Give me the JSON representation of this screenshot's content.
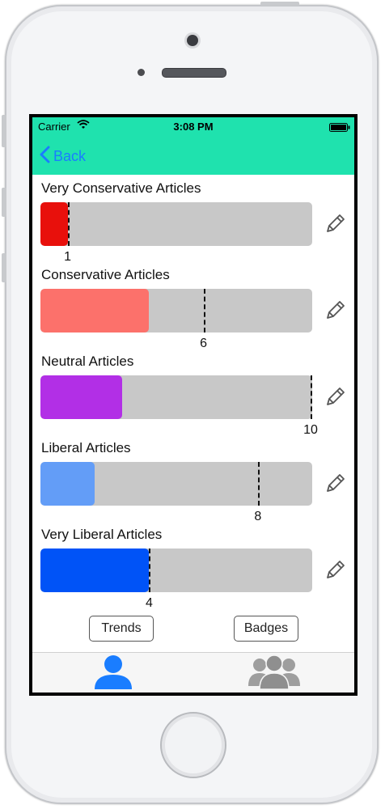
{
  "status_bar": {
    "carrier": "Carrier",
    "time": "3:08 PM"
  },
  "nav": {
    "back_label": "Back"
  },
  "categories": [
    {
      "label": "Very Conservative Articles",
      "color": "#e8100c",
      "progress_fraction": 0.1,
      "goal_fraction": 0.1,
      "goal": "1"
    },
    {
      "label": "Conservative Articles",
      "color": "#fc716b",
      "progress_fraction": 0.4,
      "goal_fraction": 0.6,
      "goal": "6"
    },
    {
      "label": "Neutral Articles",
      "color": "#b22fe6",
      "progress_fraction": 0.3,
      "goal_fraction": 1.0,
      "goal": "10"
    },
    {
      "label": "Liberal Articles",
      "color": "#639df7",
      "progress_fraction": 0.2,
      "goal_fraction": 0.8,
      "goal": "8"
    },
    {
      "label": "Very Liberal Articles",
      "color": "#0053f7",
      "progress_fraction": 0.4,
      "goal_fraction": 0.4,
      "goal": "4"
    }
  ],
  "buttons": {
    "trends": "Trends",
    "badges": "Badges"
  },
  "tabs": [
    {
      "icon": "person-icon",
      "active": true,
      "color": "#1a7dff"
    },
    {
      "icon": "group-icon",
      "active": false,
      "color": "#9e9e9e"
    }
  ],
  "accent_color": "#1fe2ae"
}
